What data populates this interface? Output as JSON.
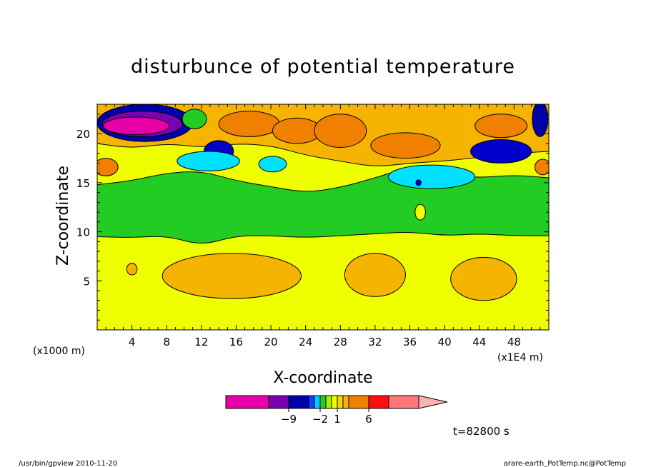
{
  "chart_data": {
    "type": "heatmap",
    "title": "disturbunce of potential temperature",
    "xlabel": "X-coordinate",
    "ylabel": "Z-coordinate",
    "x_unit_left": "(x1000 m)",
    "x_unit_right": "(x1E4 m)",
    "xlim": [
      0,
      52
    ],
    "ylim": [
      0,
      23
    ],
    "xticks": [
      4,
      8,
      12,
      16,
      20,
      24,
      28,
      32,
      36,
      40,
      44,
      48
    ],
    "yticks": [
      5,
      10,
      15,
      20
    ],
    "base_level_color": "#f0ff00",
    "regions": [
      {
        "level": "green",
        "color": "#22cc22",
        "z_bottom": [
          [
            0,
            9.5
          ],
          [
            4,
            9.4
          ],
          [
            8,
            9.6
          ],
          [
            12,
            8.6
          ],
          [
            16,
            9.6
          ],
          [
            20,
            9.6
          ],
          [
            24,
            9.4
          ],
          [
            28,
            9.6
          ],
          [
            32,
            9.8
          ],
          [
            36,
            10.0
          ],
          [
            40,
            9.6
          ],
          [
            44,
            9.8
          ],
          [
            48,
            9.6
          ],
          [
            52,
            9.6
          ]
        ]
      },
      {
        "level": "yellow",
        "color": "#f0ff00",
        "z_bottom": [
          [
            0,
            14.8
          ],
          [
            4,
            15.2
          ],
          [
            8,
            16.0
          ],
          [
            12,
            16.2
          ],
          [
            16,
            15.2
          ],
          [
            20,
            14.6
          ],
          [
            24,
            14.0
          ],
          [
            28,
            14.5
          ],
          [
            32,
            15.5
          ],
          [
            36,
            16.6
          ],
          [
            40,
            15.8
          ],
          [
            44,
            15.5
          ],
          [
            48,
            15.8
          ],
          [
            52,
            15.5
          ]
        ]
      },
      {
        "level": "light-orange",
        "color": "#f5b400",
        "z_bottom": [
          [
            0,
            19.0
          ],
          [
            4,
            18.5
          ],
          [
            8,
            19.0
          ],
          [
            12,
            18.6
          ],
          [
            16,
            19.0
          ],
          [
            20,
            18.8
          ],
          [
            24,
            17.8
          ],
          [
            28,
            17.2
          ],
          [
            32,
            16.6
          ],
          [
            36,
            17.0
          ],
          [
            40,
            17.2
          ],
          [
            44,
            17.6
          ],
          [
            48,
            18.0
          ],
          [
            52,
            18.2
          ]
        ]
      }
    ],
    "blobs": [
      {
        "x": 5.5,
        "z": 21.1,
        "rx": 5.5,
        "rz": 1.9,
        "color": "#0000aa"
      },
      {
        "x": 5.2,
        "z": 21.0,
        "rx": 4.6,
        "rz": 1.3,
        "color": "#7a00b4"
      },
      {
        "x": 4.5,
        "z": 20.8,
        "rx": 3.8,
        "rz": 0.9,
        "color": "#e600a8"
      },
      {
        "x": 11.2,
        "z": 21.5,
        "rx": 1.4,
        "rz": 1.0,
        "color": "#22cc22"
      },
      {
        "x": 14.0,
        "z": 18.2,
        "rx": 1.7,
        "rz": 1.1,
        "color": "#0000cc"
      },
      {
        "x": 12.8,
        "z": 17.2,
        "rx": 3.6,
        "rz": 1.0,
        "color": "#00e0ff"
      },
      {
        "x": 20.2,
        "z": 16.9,
        "rx": 1.6,
        "rz": 0.8,
        "color": "#00e0ff"
      },
      {
        "x": 17.5,
        "z": 21.0,
        "rx": 3.5,
        "rz": 1.3,
        "color": "#f08000"
      },
      {
        "x": 23.0,
        "z": 20.3,
        "rx": 2.8,
        "rz": 1.3,
        "color": "#f08000"
      },
      {
        "x": 28.0,
        "z": 20.3,
        "rx": 3.0,
        "rz": 1.7,
        "color": "#f08000"
      },
      {
        "x": 35.5,
        "z": 18.8,
        "rx": 4.0,
        "rz": 1.3,
        "color": "#f08000"
      },
      {
        "x": 46.5,
        "z": 20.8,
        "rx": 3.0,
        "rz": 1.2,
        "color": "#f08000"
      },
      {
        "x": 1.0,
        "z": 16.6,
        "rx": 1.4,
        "rz": 0.9,
        "color": "#f08000"
      },
      {
        "x": 38.5,
        "z": 15.6,
        "rx": 5.0,
        "rz": 1.2,
        "color": "#00e0ff"
      },
      {
        "x": 46.5,
        "z": 18.2,
        "rx": 3.5,
        "rz": 1.2,
        "color": "#0000cc"
      },
      {
        "x": 51.0,
        "z": 21.5,
        "rx": 0.9,
        "rz": 1.8,
        "color": "#0000aa"
      },
      {
        "x": 51.3,
        "z": 16.6,
        "rx": 0.9,
        "rz": 0.8,
        "color": "#f08000"
      },
      {
        "x": 37.0,
        "z": 15.0,
        "rx": 0.3,
        "rz": 0.3,
        "color": "#0000cc"
      },
      {
        "x": 37.2,
        "z": 12.0,
        "rx": 0.6,
        "rz": 0.8,
        "color": "#f0ff00"
      },
      {
        "x": 15.5,
        "z": 5.5,
        "rx": 8.0,
        "rz": 2.3,
        "color": "#f5b400"
      },
      {
        "x": 4.0,
        "z": 6.2,
        "rx": 0.6,
        "rz": 0.6,
        "color": "#f5b400"
      },
      {
        "x": 32.0,
        "z": 5.6,
        "rx": 3.5,
        "rz": 2.2,
        "color": "#f5b400"
      },
      {
        "x": 44.5,
        "z": 5.2,
        "rx": 3.8,
        "rz": 2.2,
        "color": "#f5b400"
      }
    ],
    "colorbar": {
      "colors": [
        "#e600a8",
        "#7a00b4",
        "#0000aa",
        "#1040ff",
        "#00c8ff",
        "#22cc22",
        "#aaee00",
        "#f0ff00",
        "#f5d200",
        "#f5b400",
        "#f08000",
        "#ff1010",
        "#ff7777",
        "#ffb0b0"
      ],
      "widths": [
        60,
        28,
        28,
        8,
        8,
        8,
        8,
        8,
        8,
        8,
        28,
        28,
        42,
        40
      ],
      "tick_labels": [
        {
          "label": "−9",
          "after_segment": 1
        },
        {
          "label": "−2",
          "after_segment": 4
        },
        {
          "label": "1",
          "after_segment": 7
        },
        {
          "label": "6",
          "after_segment": 10
        }
      ]
    },
    "time_label": "t=82800 s"
  },
  "footer": {
    "left": "/usr/bin/gpview   2010-11-20",
    "right": "arare-earth_PotTemp.nc@PotTemp"
  }
}
